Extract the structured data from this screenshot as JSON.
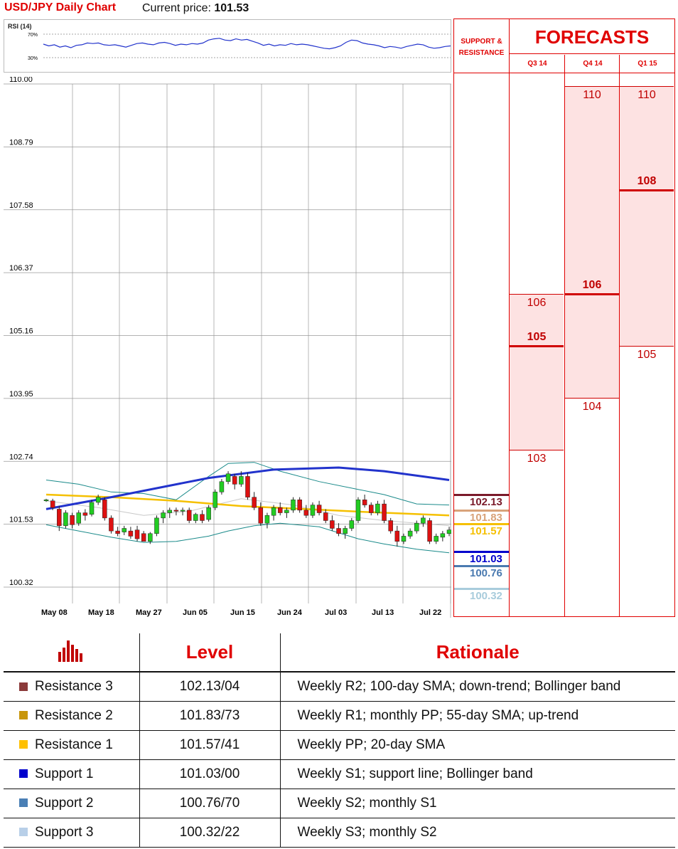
{
  "header": {
    "title": "USD/JPY Daily Chart",
    "price_label": "Current price: ",
    "price_value": "101.53"
  },
  "rsi": {
    "title": "RSI (14)",
    "upper": "70%",
    "lower": "30%",
    "values": [
      53,
      50,
      52,
      48,
      50,
      47,
      51,
      52,
      55,
      54,
      55,
      52,
      51,
      52,
      50,
      48,
      51,
      54,
      55,
      53,
      52,
      55,
      56,
      54,
      51,
      53,
      52,
      54,
      53,
      55,
      60,
      62,
      63,
      60,
      59,
      62,
      60,
      61,
      58,
      55,
      51,
      53,
      50,
      52,
      51,
      54,
      52,
      53,
      52,
      50,
      48,
      46,
      45,
      47,
      50,
      56,
      60,
      59,
      55,
      53,
      52,
      50,
      47,
      49,
      48,
      46,
      49,
      51,
      53,
      52,
      48,
      46,
      47,
      49,
      50
    ]
  },
  "chart_data": {
    "type": "candlestick",
    "title": "USD/JPY Daily Chart",
    "y_ticks": [
      "110.00",
      "108.79",
      "107.58",
      "106.37",
      "105.16",
      "103.95",
      "102.74",
      "101.53",
      "100.32"
    ],
    "ylim": [
      100.32,
      110.0
    ],
    "x_ticks": [
      "May 08",
      "May 18",
      "May 27",
      "Jun 05",
      "Jun 15",
      "Jun 24",
      "Jul 03",
      "Jul 13",
      "Jul 22"
    ],
    "grid": true,
    "candles": [
      [
        101.98,
        102.02,
        101.96,
        102.0
      ],
      [
        101.98,
        102.02,
        101.8,
        101.85
      ],
      [
        101.82,
        101.88,
        101.4,
        101.5
      ],
      [
        101.5,
        101.8,
        101.45,
        101.75
      ],
      [
        101.7,
        101.75,
        101.45,
        101.52
      ],
      [
        101.55,
        101.8,
        101.5,
        101.75
      ],
      [
        101.75,
        101.82,
        101.6,
        101.7
      ],
      [
        101.72,
        102.0,
        101.68,
        101.95
      ],
      [
        101.95,
        102.1,
        101.9,
        102.05
      ],
      [
        102.0,
        102.05,
        101.6,
        101.65
      ],
      [
        101.65,
        101.7,
        101.35,
        101.4
      ],
      [
        101.4,
        101.48,
        101.3,
        101.35
      ],
      [
        101.38,
        101.5,
        101.32,
        101.45
      ],
      [
        101.4,
        101.48,
        101.25,
        101.3
      ],
      [
        101.42,
        101.5,
        101.2,
        101.25
      ],
      [
        101.35,
        101.4,
        101.2,
        101.2
      ],
      [
        101.2,
        101.38,
        101.15,
        101.35
      ],
      [
        101.35,
        101.7,
        101.3,
        101.65
      ],
      [
        101.65,
        101.8,
        101.55,
        101.75
      ],
      [
        101.75,
        101.85,
        101.65,
        101.8
      ],
      [
        101.8,
        101.85,
        101.7,
        101.78
      ],
      [
        101.78,
        101.85,
        101.7,
        101.8
      ],
      [
        101.8,
        101.85,
        101.55,
        101.6
      ],
      [
        101.6,
        101.75,
        101.55,
        101.72
      ],
      [
        101.72,
        101.8,
        101.55,
        101.6
      ],
      [
        101.62,
        101.9,
        101.58,
        101.85
      ],
      [
        101.85,
        102.2,
        101.8,
        102.15
      ],
      [
        102.15,
        102.4,
        102.1,
        102.35
      ],
      [
        102.35,
        102.55,
        102.3,
        102.5
      ],
      [
        102.45,
        102.5,
        102.2,
        102.3
      ],
      [
        102.3,
        102.55,
        102.25,
        102.45
      ],
      [
        102.45,
        102.52,
        102.0,
        102.05
      ],
      [
        102.05,
        102.15,
        101.8,
        101.85
      ],
      [
        101.85,
        101.95,
        101.5,
        101.55
      ],
      [
        101.55,
        101.75,
        101.45,
        101.7
      ],
      [
        101.7,
        101.9,
        101.6,
        101.85
      ],
      [
        101.85,
        101.95,
        101.7,
        101.75
      ],
      [
        101.75,
        101.85,
        101.65,
        101.8
      ],
      [
        101.8,
        102.05,
        101.75,
        102.0
      ],
      [
        102.0,
        102.05,
        101.75,
        101.8
      ],
      [
        101.8,
        101.9,
        101.65,
        101.7
      ],
      [
        101.7,
        101.95,
        101.65,
        101.9
      ],
      [
        101.9,
        101.98,
        101.7,
        101.75
      ],
      [
        101.75,
        101.82,
        101.55,
        101.6
      ],
      [
        101.6,
        101.7,
        101.4,
        101.45
      ],
      [
        101.45,
        101.55,
        101.3,
        101.35
      ],
      [
        101.35,
        101.5,
        101.25,
        101.45
      ],
      [
        101.45,
        101.65,
        101.4,
        101.6
      ],
      [
        101.6,
        102.05,
        101.55,
        102.0
      ],
      [
        102.0,
        102.1,
        101.85,
        101.9
      ],
      [
        101.9,
        101.95,
        101.7,
        101.75
      ],
      [
        101.75,
        101.98,
        101.7,
        101.92
      ],
      [
        101.92,
        102.0,
        101.55,
        101.6
      ],
      [
        101.6,
        101.65,
        101.35,
        101.4
      ],
      [
        101.4,
        101.5,
        101.1,
        101.2
      ],
      [
        101.2,
        101.35,
        101.15,
        101.3
      ],
      [
        101.3,
        101.45,
        101.25,
        101.4
      ],
      [
        101.4,
        101.6,
        101.35,
        101.55
      ],
      [
        101.55,
        101.7,
        101.48,
        101.65
      ],
      [
        101.6,
        101.65,
        101.15,
        101.2
      ],
      [
        101.2,
        101.35,
        101.15,
        101.3
      ],
      [
        101.28,
        101.4,
        101.2,
        101.35
      ],
      [
        101.35,
        101.48,
        101.3,
        101.42
      ]
    ],
    "sma100": [
      [
        0,
        101.82
      ],
      [
        10,
        102.05
      ],
      [
        25,
        102.42
      ],
      [
        35,
        102.58
      ],
      [
        45,
        102.62
      ],
      [
        52,
        102.55
      ],
      [
        62,
        102.38
      ]
    ],
    "sma55": [
      [
        0,
        102.1
      ],
      [
        10,
        102.05
      ],
      [
        20,
        101.98
      ],
      [
        30,
        101.88
      ],
      [
        40,
        101.82
      ],
      [
        50,
        101.76
      ],
      [
        62,
        101.7
      ]
    ],
    "sma20": [
      [
        0,
        101.98
      ],
      [
        8,
        101.85
      ],
      [
        15,
        101.7
      ],
      [
        22,
        101.78
      ],
      [
        30,
        102.02
      ],
      [
        38,
        101.9
      ],
      [
        45,
        101.7
      ],
      [
        52,
        101.6
      ],
      [
        62,
        101.5
      ]
    ],
    "bb_upper": [
      [
        0,
        102.38
      ],
      [
        5,
        102.3
      ],
      [
        10,
        102.15
      ],
      [
        15,
        102.12
      ],
      [
        20,
        102.0
      ],
      [
        25,
        102.45
      ],
      [
        28,
        102.7
      ],
      [
        32,
        102.72
      ],
      [
        36,
        102.55
      ],
      [
        42,
        102.35
      ],
      [
        48,
        102.2
      ],
      [
        52,
        102.1
      ],
      [
        57,
        101.92
      ],
      [
        62,
        101.9
      ]
    ],
    "bb_lower": [
      [
        0,
        101.52
      ],
      [
        5,
        101.4
      ],
      [
        10,
        101.28
      ],
      [
        15,
        101.18
      ],
      [
        20,
        101.2
      ],
      [
        25,
        101.3
      ],
      [
        28,
        101.4
      ],
      [
        32,
        101.5
      ],
      [
        36,
        101.55
      ],
      [
        42,
        101.48
      ],
      [
        48,
        101.25
      ],
      [
        52,
        101.15
      ],
      [
        57,
        101.05
      ],
      [
        62,
        100.98
      ]
    ],
    "sr_lines": [
      {
        "value": 102.13,
        "label": "102.13",
        "color": "#7a1a2a"
      },
      {
        "value": 101.83,
        "label": "101.83",
        "color": "#d9a37a"
      },
      {
        "value": 101.57,
        "label": "101.57",
        "color": "#f5c000"
      },
      {
        "value": 101.03,
        "label": "101.03",
        "color": "#0000cc"
      },
      {
        "value": 100.76,
        "label": "100.76",
        "color": "#4a7ab0"
      },
      {
        "value": 100.32,
        "label": "100.32",
        "color": "#a8ccdc"
      }
    ]
  },
  "sr_panel": {
    "heading_1": "SUPPORT &",
    "heading_2": "RESISTANCE"
  },
  "forecasts": {
    "title": "FORECASTS",
    "quarters": [
      {
        "label": "Q3 14",
        "high": 106,
        "main": 105,
        "low": 103
      },
      {
        "label": "Q4 14",
        "high": 110,
        "main": 106,
        "low": 104
      },
      {
        "label": "Q1 15",
        "high": 110,
        "main": 108,
        "low": 105
      }
    ]
  },
  "table": {
    "col_level": "Level",
    "col_rationale": "Rationale",
    "rows": [
      {
        "name": "Resistance 3",
        "level": "102.13/04",
        "rationale": "Weekly R2; 100-day SMA; down-trend; Bollinger band",
        "color": "#8b3a3a"
      },
      {
        "name": "Resistance 2",
        "level": "101.83/73",
        "rationale": "Weekly R1; monthly PP; 55-day SMA; up-trend",
        "color": "#c8960a"
      },
      {
        "name": "Resistance 1",
        "level": "101.57/41",
        "rationale": "Weekly PP; 20-day SMA",
        "color": "#ffc000"
      },
      {
        "name": "Support 1",
        "level": "101.03/00",
        "rationale": "Weekly S1; support line; Bollinger band",
        "color": "#0000cc"
      },
      {
        "name": "Support 2",
        "level": "100.76/70",
        "rationale": "Weekly S2; monthly S1",
        "color": "#4a7fb5"
      },
      {
        "name": "Support 3",
        "level": "100.32/22",
        "rationale": "Weekly S3; monthly S2",
        "color": "#b8cfe8"
      }
    ]
  }
}
